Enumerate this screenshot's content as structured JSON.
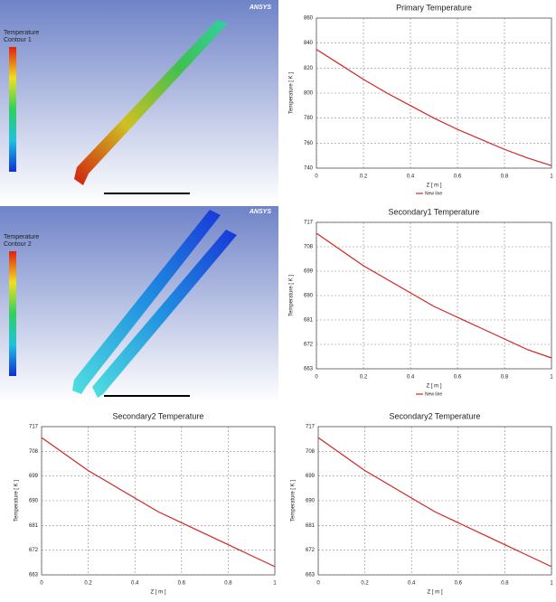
{
  "contours": [
    {
      "title": "Temperature",
      "subtitle": "Contour 1",
      "logo": "ANSYS"
    },
    {
      "title": "Temperature",
      "subtitle": "Contour 2",
      "logo": "ANSYS"
    }
  ],
  "chart_data": [
    {
      "type": "line",
      "title": "Primary Temperature",
      "x_label": "Z [ m ]",
      "y_label": "Temperature [ K ]",
      "x": [
        0,
        0.1,
        0.2,
        0.3,
        0.4,
        0.5,
        0.6,
        0.7,
        0.8,
        0.9,
        1
      ],
      "xlim": [
        0,
        1
      ],
      "xticks": [
        0,
        0.2,
        0.4,
        0.6,
        0.8,
        1
      ],
      "ylim": [
        740,
        860
      ],
      "yticks": [
        740,
        760,
        780,
        800,
        820,
        840,
        860
      ],
      "grid": true,
      "series": [
        {
          "name": "New line",
          "color": "#d42424",
          "values": [
            835,
            823,
            811,
            800,
            790,
            780,
            771,
            763,
            755,
            748,
            742
          ]
        }
      ]
    },
    {
      "type": "line",
      "title": "Secondary1 Temperature",
      "x_label": "Z [ m ]",
      "y_label": "Temperature [ K ]",
      "x": [
        0,
        0.1,
        0.2,
        0.3,
        0.4,
        0.5,
        0.6,
        0.7,
        0.8,
        0.9,
        1
      ],
      "xlim": [
        0,
        1
      ],
      "xticks": [
        0,
        0.2,
        0.4,
        0.6,
        0.8,
        1
      ],
      "ylim": [
        663,
        717
      ],
      "yticks": [
        663,
        672,
        681,
        690,
        699,
        708,
        717
      ],
      "grid": true,
      "series": [
        {
          "name": "New line",
          "color": "#d42424",
          "values": [
            713,
            707,
            701,
            696,
            691,
            686,
            682,
            678,
            674,
            670,
            667
          ]
        }
      ]
    },
    {
      "type": "line",
      "title": "Secondary2 Temperature",
      "x_label": "Z [ m ]",
      "y_label": "Temperature [ K ]",
      "x": [
        0,
        0.1,
        0.2,
        0.3,
        0.4,
        0.5,
        0.6,
        0.7,
        0.8,
        0.9,
        1
      ],
      "xlim": [
        0,
        1
      ],
      "xticks": [
        0,
        0.2,
        0.4,
        0.6,
        0.8,
        1
      ],
      "ylim": [
        663,
        717
      ],
      "yticks": [
        663,
        672,
        681,
        690,
        699,
        708,
        717
      ],
      "grid": true,
      "series": [
        {
          "color": "#d42424",
          "values": [
            713,
            707,
            701,
            696,
            691,
            686,
            682,
            678,
            674,
            670,
            666
          ]
        }
      ]
    },
    {
      "type": "line",
      "title": "Secondary2 Temperature",
      "x_label": "Z [ m ]",
      "y_label": "Temperature [ K ]",
      "x": [
        0,
        0.1,
        0.2,
        0.3,
        0.4,
        0.5,
        0.6,
        0.7,
        0.8,
        0.9,
        1
      ],
      "xlim": [
        0,
        1
      ],
      "xticks": [
        0,
        0.2,
        0.4,
        0.6,
        0.8,
        1
      ],
      "ylim": [
        663,
        717
      ],
      "yticks": [
        663,
        672,
        681,
        690,
        699,
        708,
        717
      ],
      "grid": true,
      "series": [
        {
          "color": "#d42424",
          "values": [
            713,
            707,
            701,
            696,
            691,
            686,
            682,
            678,
            674,
            670,
            666
          ]
        }
      ]
    }
  ]
}
